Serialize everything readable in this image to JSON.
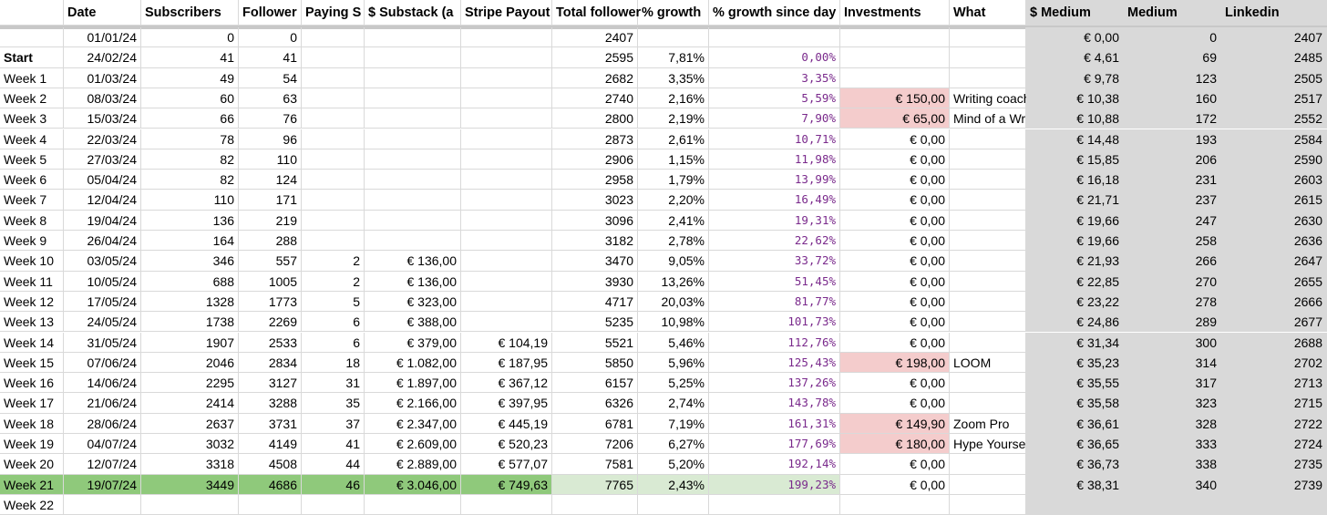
{
  "columns": [
    "",
    "Date",
    "Subscribers",
    "Follower",
    "Paying S",
    "$ Substack (a",
    "Stripe Payout",
    "Total follower",
    "% growth",
    "% growth since day",
    "Investments",
    "What",
    "$ Medium",
    "Medium",
    "Linkedin"
  ],
  "rows": [
    [
      "",
      "01/01/24",
      "0",
      "0",
      "",
      "",
      "",
      "2407",
      "",
      "",
      "",
      "",
      "€ 0,00",
      "0",
      "2407"
    ],
    [
      "Start",
      "24/02/24",
      "41",
      "41",
      "",
      "",
      "",
      "2595",
      "7,81%",
      "0,00%",
      "",
      "",
      "€ 4,61",
      "69",
      "2485"
    ],
    [
      "Week 1",
      "01/03/24",
      "49",
      "54",
      "",
      "",
      "",
      "2682",
      "3,35%",
      "3,35%",
      "",
      "",
      "€ 9,78",
      "123",
      "2505"
    ],
    [
      "Week 2",
      "08/03/24",
      "60",
      "63",
      "",
      "",
      "",
      "2740",
      "2,16%",
      "5,59%",
      "€ 150,00",
      "Writing coach",
      "€ 10,38",
      "160",
      "2517"
    ],
    [
      "Week 3",
      "15/03/24",
      "66",
      "76",
      "",
      "",
      "",
      "2800",
      "2,19%",
      "7,90%",
      "€ 65,00",
      "Mind of a Wr",
      "€ 10,88",
      "172",
      "2552"
    ],
    [
      "Week 4",
      "22/03/24",
      "78",
      "96",
      "",
      "",
      "",
      "2873",
      "2,61%",
      "10,71%",
      "€ 0,00",
      "",
      "€ 14,48",
      "193",
      "2584"
    ],
    [
      "Week 5",
      "27/03/24",
      "82",
      "110",
      "",
      "",
      "",
      "2906",
      "1,15%",
      "11,98%",
      "€ 0,00",
      "",
      "€ 15,85",
      "206",
      "2590"
    ],
    [
      "Week 6",
      "05/04/24",
      "82",
      "124",
      "",
      "",
      "",
      "2958",
      "1,79%",
      "13,99%",
      "€ 0,00",
      "",
      "€ 16,18",
      "231",
      "2603"
    ],
    [
      "Week 7",
      "12/04/24",
      "110",
      "171",
      "",
      "",
      "",
      "3023",
      "2,20%",
      "16,49%",
      "€ 0,00",
      "",
      "€ 21,71",
      "237",
      "2615"
    ],
    [
      "Week 8",
      "19/04/24",
      "136",
      "219",
      "",
      "",
      "",
      "3096",
      "2,41%",
      "19,31%",
      "€ 0,00",
      "",
      "€ 19,66",
      "247",
      "2630"
    ],
    [
      "Week 9",
      "26/04/24",
      "164",
      "288",
      "",
      "",
      "",
      "3182",
      "2,78%",
      "22,62%",
      "€ 0,00",
      "",
      "€ 19,66",
      "258",
      "2636"
    ],
    [
      "Week 10",
      "03/05/24",
      "346",
      "557",
      "2",
      "€ 136,00",
      "",
      "3470",
      "9,05%",
      "33,72%",
      "€ 0,00",
      "",
      "€ 21,93",
      "266",
      "2647"
    ],
    [
      "Week 11",
      "10/05/24",
      "688",
      "1005",
      "2",
      "€ 136,00",
      "",
      "3930",
      "13,26%",
      "51,45%",
      "€ 0,00",
      "",
      "€ 22,85",
      "270",
      "2655"
    ],
    [
      "Week 12",
      "17/05/24",
      "1328",
      "1773",
      "5",
      "€ 323,00",
      "",
      "4717",
      "20,03%",
      "81,77%",
      "€ 0,00",
      "",
      "€ 23,22",
      "278",
      "2666"
    ],
    [
      "Week 13",
      "24/05/24",
      "1738",
      "2269",
      "6",
      "€ 388,00",
      "",
      "5235",
      "10,98%",
      "101,73%",
      "€ 0,00",
      "",
      "€ 24,86",
      "289",
      "2677"
    ],
    [
      "Week 14",
      "31/05/24",
      "1907",
      "2533",
      "6",
      "€ 379,00",
      "€ 104,19",
      "5521",
      "5,46%",
      "112,76%",
      "€ 0,00",
      "",
      "€ 31,34",
      "300",
      "2688"
    ],
    [
      "Week 15",
      "07/06/24",
      "2046",
      "2834",
      "18",
      "€ 1.082,00",
      "€ 187,95",
      "5850",
      "5,96%",
      "125,43%",
      "€ 198,00",
      "LOOM",
      "€ 35,23",
      "314",
      "2702"
    ],
    [
      "Week 16",
      "14/06/24",
      "2295",
      "3127",
      "31",
      "€ 1.897,00",
      "€ 367,12",
      "6157",
      "5,25%",
      "137,26%",
      "€ 0,00",
      "",
      "€ 35,55",
      "317",
      "2713"
    ],
    [
      "Week 17",
      "21/06/24",
      "2414",
      "3288",
      "35",
      "€ 2.166,00",
      "€ 397,95",
      "6326",
      "2,74%",
      "143,78%",
      "€ 0,00",
      "",
      "€ 35,58",
      "323",
      "2715"
    ],
    [
      "Week 18",
      "28/06/24",
      "2637",
      "3731",
      "37",
      "€ 2.347,00",
      "€ 445,19",
      "6781",
      "7,19%",
      "161,31%",
      "€ 149,90",
      "Zoom Pro",
      "€ 36,61",
      "328",
      "2722"
    ],
    [
      "Week 19",
      "04/07/24",
      "3032",
      "4149",
      "41",
      "€ 2.609,00",
      "€ 520,23",
      "7206",
      "6,27%",
      "177,69%",
      "€ 180,00",
      "Hype Yourse",
      "€ 36,65",
      "333",
      "2724"
    ],
    [
      "Week 20",
      "12/07/24",
      "3318",
      "4508",
      "44",
      "€ 2.889,00",
      "€ 577,07",
      "7581",
      "5,20%",
      "192,14%",
      "€ 0,00",
      "",
      "€ 36,73",
      "338",
      "2735"
    ],
    [
      "Week 21",
      "19/07/24",
      "3449",
      "4686",
      "46",
      "€ 3.046,00",
      "€ 749,63",
      "7765",
      "2,43%",
      "199,23%",
      "€ 0,00",
      "",
      "€ 38,31",
      "340",
      "2739"
    ],
    [
      "Week 22",
      "",
      "",
      "",
      "",
      "",
      "",
      "",
      "",
      "",
      "",
      "",
      "",
      "",
      ""
    ]
  ],
  "colors": {
    "gray_column": "#d9d9d9",
    "investment_highlight": "#f4cccc",
    "last_row_green": "#8fc97b",
    "last_row_light_green": "#d9ead3",
    "percent_text": "#7a2a8c"
  }
}
